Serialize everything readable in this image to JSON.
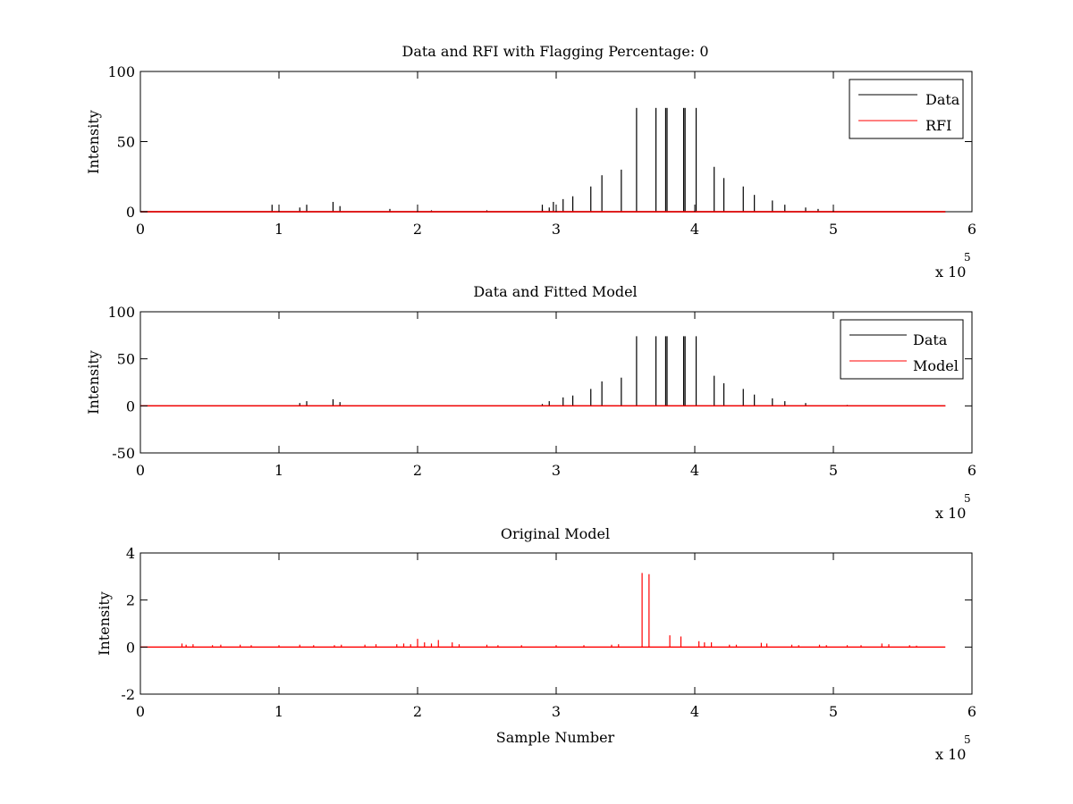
{
  "chart_data": [
    {
      "type": "line",
      "title": "Data and RFI with Flagging Percentage: 0",
      "xlabel": "",
      "ylabel": "Intensity",
      "xlim": [
        0,
        600000
      ],
      "ylim": [
        0,
        100
      ],
      "xticks": [
        0,
        1,
        2,
        3,
        4,
        5,
        6
      ],
      "yticks": [
        0,
        50,
        100
      ],
      "x_multiplier": "x 10",
      "x_multiplier_exp": "5",
      "grid": false,
      "legend_position": "top-right",
      "legend": [
        "Data",
        "RFI"
      ],
      "series": [
        {
          "name": "Data",
          "color": "#000000",
          "baseline": 0,
          "spikes": [
            [
              95000,
              5
            ],
            [
              115000,
              3
            ],
            [
              120000,
              5
            ],
            [
              139000,
              7
            ],
            [
              144000,
              4
            ],
            [
              180000,
              2
            ],
            [
              210000,
              1
            ],
            [
              250000,
              1
            ],
            [
              290000,
              2
            ],
            [
              295000,
              3
            ],
            [
              290000,
              5
            ],
            [
              298000,
              7
            ],
            [
              305000,
              9
            ],
            [
              312000,
              11
            ],
            [
              325000,
              18
            ],
            [
              333000,
              26
            ],
            [
              347000,
              30
            ],
            [
              358000,
              74
            ],
            [
              372000,
              74
            ],
            [
              379000,
              74
            ],
            [
              380000,
              74
            ],
            [
              392000,
              74
            ],
            [
              393000,
              74
            ],
            [
              401000,
              74
            ],
            [
              414000,
              32
            ],
            [
              421000,
              24
            ],
            [
              435000,
              18
            ],
            [
              443000,
              12
            ],
            [
              456000,
              8
            ],
            [
              465000,
              5
            ],
            [
              480000,
              3
            ],
            [
              489000,
              2
            ],
            [
              500000,
              1
            ]
          ]
        },
        {
          "name": "RFI",
          "color": "#ff0000",
          "baseline": 0,
          "spikes": []
        }
      ]
    },
    {
      "type": "line",
      "title": "Data and Fitted Model",
      "xlabel": "",
      "ylabel": "Intensity",
      "xlim": [
        0,
        600000
      ],
      "ylim": [
        -50,
        100
      ],
      "xticks": [
        0,
        1,
        2,
        3,
        4,
        5,
        6
      ],
      "yticks": [
        -50,
        0,
        50,
        100
      ],
      "x_multiplier": "x 10",
      "x_multiplier_exp": "5",
      "grid": false,
      "legend_position": "top-right",
      "legend": [
        "Data",
        "Model"
      ],
      "series": [
        {
          "name": "Data",
          "color": "#000000",
          "baseline": 0,
          "spikes": [
            [
              115000,
              3
            ],
            [
              120000,
              5
            ],
            [
              139000,
              7
            ],
            [
              144000,
              4
            ],
            [
              290000,
              2
            ],
            [
              295000,
              5
            ],
            [
              305000,
              9
            ],
            [
              312000,
              11
            ],
            [
              325000,
              18
            ],
            [
              333000,
              26
            ],
            [
              347000,
              30
            ],
            [
              358000,
              74
            ],
            [
              372000,
              74
            ],
            [
              379000,
              74
            ],
            [
              380000,
              74
            ],
            [
              392000,
              74
            ],
            [
              393000,
              74
            ],
            [
              401000,
              74
            ],
            [
              414000,
              32
            ],
            [
              421000,
              24
            ],
            [
              435000,
              18
            ],
            [
              443000,
              12
            ],
            [
              456000,
              8
            ],
            [
              465000,
              5
            ],
            [
              480000,
              3
            ],
            [
              510000,
              1
            ]
          ]
        },
        {
          "name": "Model",
          "color": "#ff0000",
          "baseline": 0,
          "spikes": []
        }
      ]
    },
    {
      "type": "line",
      "title": "Original Model",
      "xlabel": "Sample Number",
      "ylabel": "Intensity",
      "xlim": [
        0,
        600000
      ],
      "ylim": [
        -2,
        4
      ],
      "xticks": [
        0,
        1,
        2,
        3,
        4,
        5,
        6
      ],
      "yticks": [
        -2,
        0,
        2,
        4
      ],
      "x_multiplier": "x 10",
      "x_multiplier_exp": "5",
      "grid": false,
      "series": [
        {
          "name": "Original Model",
          "color": "#ff0000",
          "baseline": 0,
          "spikes": [
            [
              30000,
              0.15
            ],
            [
              33000,
              0.1
            ],
            [
              38000,
              0.12
            ],
            [
              52000,
              0.08
            ],
            [
              58000,
              0.1
            ],
            [
              72000,
              0.1
            ],
            [
              80000,
              0.08
            ],
            [
              100000,
              0.08
            ],
            [
              115000,
              0.1
            ],
            [
              125000,
              0.08
            ],
            [
              140000,
              0.08
            ],
            [
              145000,
              0.1
            ],
            [
              162000,
              0.1
            ],
            [
              170000,
              0.12
            ],
            [
              185000,
              0.12
            ],
            [
              190000,
              0.15
            ],
            [
              195000,
              0.12
            ],
            [
              200000,
              0.35
            ],
            [
              205000,
              0.2
            ],
            [
              210000,
              0.15
            ],
            [
              215000,
              0.3
            ],
            [
              225000,
              0.2
            ],
            [
              230000,
              0.12
            ],
            [
              250000,
              0.1
            ],
            [
              258000,
              0.08
            ],
            [
              275000,
              0.08
            ],
            [
              300000,
              0.08
            ],
            [
              320000,
              0.08
            ],
            [
              340000,
              0.1
            ],
            [
              345000,
              0.12
            ],
            [
              362000,
              3.15
            ],
            [
              367000,
              3.1
            ],
            [
              382000,
              0.5
            ],
            [
              390000,
              0.45
            ],
            [
              403000,
              0.25
            ],
            [
              407000,
              0.2
            ],
            [
              412000,
              0.2
            ],
            [
              425000,
              0.1
            ],
            [
              430000,
              0.1
            ],
            [
              448000,
              0.18
            ],
            [
              452000,
              0.15
            ],
            [
              470000,
              0.1
            ],
            [
              475000,
              0.08
            ],
            [
              490000,
              0.1
            ],
            [
              495000,
              0.08
            ],
            [
              510000,
              0.08
            ],
            [
              520000,
              0.08
            ],
            [
              535000,
              0.15
            ],
            [
              540000,
              0.12
            ],
            [
              555000,
              0.08
            ],
            [
              560000,
              0.06
            ]
          ]
        }
      ]
    }
  ]
}
